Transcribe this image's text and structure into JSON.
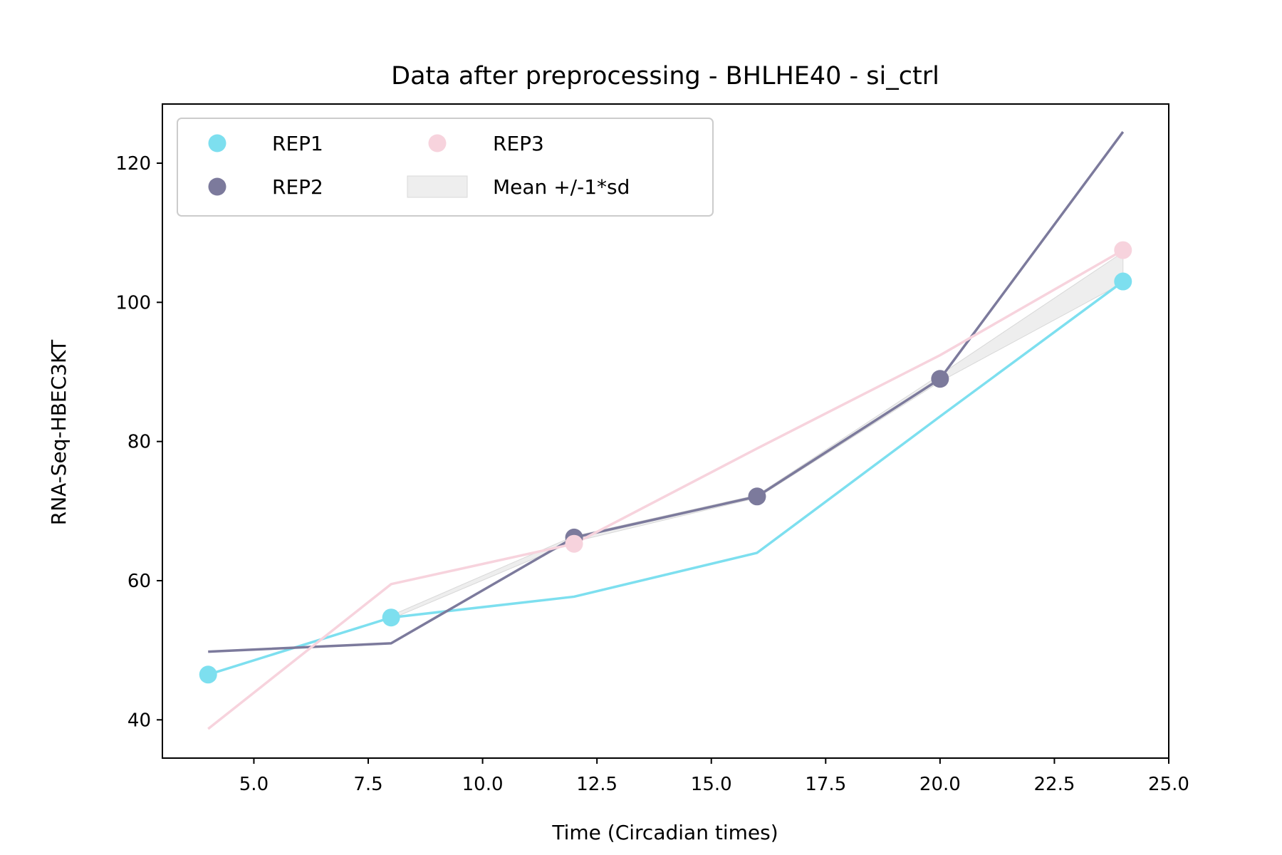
{
  "chart_data": {
    "type": "line",
    "title": "Data after preprocessing - BHLHE40 - si_ctrl",
    "xlabel": "Time (Circadian times)",
    "ylabel": "RNA-Seq-HBEC3KT",
    "xlim": [
      3.0,
      25.0
    ],
    "ylim": [
      34.5,
      128.5
    ],
    "xticks": [
      5.0,
      7.5,
      10.0,
      12.5,
      15.0,
      17.5,
      20.0,
      22.5,
      25.0
    ],
    "xtick_labels": [
      "5.0",
      "7.5",
      "10.0",
      "12.5",
      "15.0",
      "17.5",
      "20.0",
      "22.5",
      "25.0"
    ],
    "yticks": [
      40,
      60,
      80,
      100,
      120
    ],
    "ytick_labels": [
      "40",
      "60",
      "80",
      "100",
      "120"
    ],
    "grid": false,
    "legend": {
      "placement": "upper-left",
      "columns": 2
    },
    "x": [
      4,
      8,
      12,
      16,
      20,
      24
    ],
    "series": [
      {
        "name": "REP1",
        "color": "#7ddfef",
        "line": [
          46.5,
          54.7,
          57.7,
          64.0,
          83.6,
          103.0
        ],
        "points": [
          {
            "x": 4,
            "y": 46.5
          },
          {
            "x": 8,
            "y": 54.7
          },
          {
            "x": 24,
            "y": 103.0
          }
        ]
      },
      {
        "name": "REP2",
        "color": "#7c7a9c",
        "line": [
          49.8,
          51.0,
          66.2,
          72.1,
          89.0,
          124.5
        ],
        "points": [
          {
            "x": 12,
            "y": 66.2
          },
          {
            "x": 16,
            "y": 72.1
          },
          {
            "x": 20,
            "y": 89.0
          }
        ]
      },
      {
        "name": "REP3",
        "color": "#f7d3dd",
        "line": [
          38.7,
          59.5,
          65.3,
          79.0,
          92.4,
          107.5
        ],
        "points": [
          {
            "x": 12,
            "y": 65.3
          },
          {
            "x": 24,
            "y": 107.5
          }
        ]
      }
    ],
    "band": {
      "name": "Mean +/-1*sd",
      "color": "#e8e8e8",
      "x": [
        8,
        12,
        16,
        20,
        24
      ],
      "upper": [
        55.0,
        66.4,
        72.3,
        89.6,
        107.2
      ],
      "lower": [
        54.5,
        65.6,
        71.9,
        88.6,
        102.8
      ]
    }
  }
}
